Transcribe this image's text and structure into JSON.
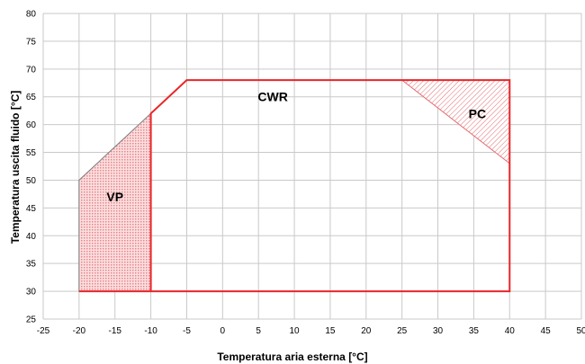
{
  "chart_data": {
    "type": "area",
    "title": "",
    "xlabel": "Temperatura aria esterna [°C]",
    "ylabel": "Temperatura uscita fluido [°C]",
    "xlim": [
      -25,
      50
    ],
    "ylim": [
      25,
      80
    ],
    "xticks": [
      -25,
      -20,
      -15,
      -10,
      -5,
      0,
      5,
      10,
      15,
      20,
      25,
      30,
      35,
      40,
      45,
      50
    ],
    "yticks": [
      25,
      30,
      35,
      40,
      45,
      50,
      55,
      60,
      65,
      70,
      75,
      80
    ],
    "grid": true,
    "legend": "none",
    "colors": {
      "envelope": "#e8262a",
      "hatch": "#e36b70",
      "vp_fill": "#f6c6c8",
      "grid": "#c9c9c9"
    },
    "regions": [
      {
        "name": "CWR",
        "points": [
          [
            -20,
            30
          ],
          [
            -10,
            30
          ],
          [
            40,
            30
          ],
          [
            40,
            68
          ],
          [
            -5,
            68
          ],
          [
            -10,
            62
          ],
          [
            -10,
            30
          ]
        ],
        "label_at": [
          7,
          65
        ]
      },
      {
        "name": "VP",
        "points": [
          [
            -20,
            30
          ],
          [
            -20,
            50
          ],
          [
            -10,
            62
          ],
          [
            -10,
            30
          ]
        ],
        "label_at": [
          -15,
          47
        ]
      },
      {
        "name": "PC",
        "points": [
          [
            25,
            68
          ],
          [
            40,
            68
          ],
          [
            40,
            53
          ]
        ],
        "label_at": [
          35.5,
          62
        ]
      }
    ]
  }
}
